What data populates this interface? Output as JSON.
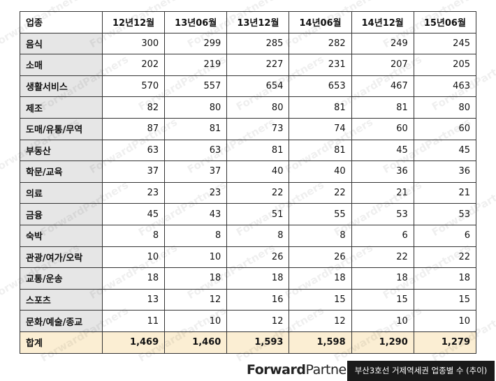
{
  "table": {
    "header": [
      "업종",
      "12년12월",
      "13년06월",
      "13년12월",
      "14년06월",
      "14년12월",
      "15년06월"
    ],
    "rows": [
      [
        "음식",
        "300",
        "299",
        "285",
        "282",
        "249",
        "245"
      ],
      [
        "소매",
        "202",
        "219",
        "227",
        "231",
        "207",
        "205"
      ],
      [
        "생활서비스",
        "570",
        "557",
        "654",
        "653",
        "467",
        "463"
      ],
      [
        "제조",
        "82",
        "80",
        "80",
        "81",
        "81",
        "80"
      ],
      [
        "도매/유통/무역",
        "87",
        "81",
        "73",
        "74",
        "60",
        "60"
      ],
      [
        "부동산",
        "63",
        "63",
        "81",
        "81",
        "45",
        "45"
      ],
      [
        "학문/교육",
        "37",
        "37",
        "40",
        "40",
        "36",
        "36"
      ],
      [
        "의료",
        "23",
        "23",
        "22",
        "22",
        "21",
        "21"
      ],
      [
        "금융",
        "45",
        "43",
        "51",
        "55",
        "53",
        "53"
      ],
      [
        "숙박",
        "8",
        "8",
        "8",
        "8",
        "6",
        "6"
      ],
      [
        "관광/여가/오락",
        "10",
        "10",
        "26",
        "26",
        "22",
        "22"
      ],
      [
        "교통/운송",
        "18",
        "18",
        "18",
        "18",
        "18",
        "18"
      ],
      [
        "스포츠",
        "13",
        "12",
        "16",
        "15",
        "15",
        "15"
      ],
      [
        "문화/예술/종교",
        "11",
        "10",
        "12",
        "12",
        "10",
        "10"
      ]
    ],
    "total": [
      "합계",
      "1,469",
      "1,460",
      "1,593",
      "1,598",
      "1,290",
      "1,279"
    ]
  },
  "watermark": "ForwardPartners",
  "footer": {
    "logo_bold": "Forward",
    "logo_light": "Partners",
    "caption": "부산3호선 거제역세권 업종별 수 (추이)"
  }
}
